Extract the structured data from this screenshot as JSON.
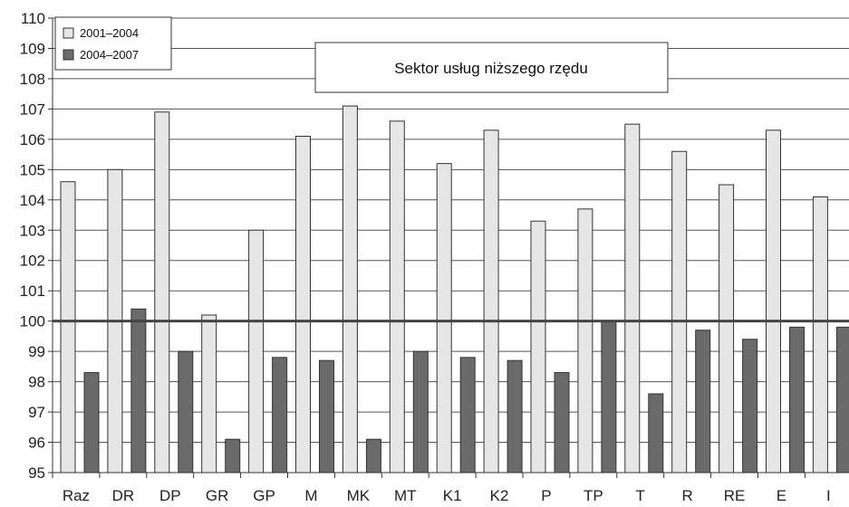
{
  "chart_data": {
    "type": "bar",
    "title": "Sektor usług niższego rzędu",
    "categories": [
      "Raz",
      "DR",
      "DP",
      "GR",
      "GP",
      "M",
      "MK",
      "MT",
      "K1",
      "K2",
      "P",
      "TP",
      "T",
      "R",
      "RE",
      "E",
      "I"
    ],
    "series": [
      {
        "name": "2001–2004",
        "color": "#e6e6e6",
        "values": [
          104.6,
          105.0,
          106.9,
          100.2,
          103.0,
          106.1,
          107.1,
          106.6,
          105.2,
          106.3,
          103.3,
          103.7,
          106.5,
          105.6,
          104.5,
          106.3,
          104.1
        ]
      },
      {
        "name": "2004–2007",
        "color": "#6a6a6a",
        "values": [
          98.3,
          100.4,
          99.0,
          96.1,
          98.8,
          98.7,
          96.1,
          99.0,
          98.8,
          98.7,
          98.3,
          100.0,
          97.6,
          99.7,
          99.4,
          99.8,
          99.8
        ]
      }
    ],
    "ylim": [
      95,
      110
    ],
    "yticks": [
      "95",
      "96",
      "97",
      "98",
      "99",
      "100",
      "101",
      "102",
      "103",
      "104",
      "105",
      "106",
      "107",
      "108",
      "109",
      "110"
    ],
    "reference_line": 100,
    "grid": true,
    "legend_position": "top-left"
  }
}
